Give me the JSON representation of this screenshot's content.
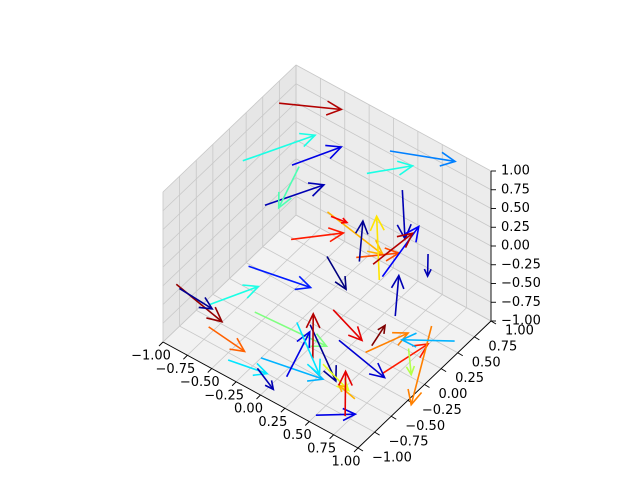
{
  "chart_data": {
    "type": "quiver3d",
    "title": "",
    "xlabel": "",
    "ylabel": "",
    "zlabel": "",
    "xlim": [
      -1.0,
      1.0
    ],
    "ylim": [
      -1.0,
      1.0
    ],
    "zlim": [
      -1.0,
      1.0
    ],
    "grid": true,
    "colormap": "jet",
    "x_ticks": [
      "−1.00",
      "−0.75",
      "−0.50",
      "−0.25",
      "0.00",
      "0.25",
      "0.50",
      "0.75",
      "1.00"
    ],
    "y_ticks": [
      "−1.00",
      "−0.75",
      "−0.50",
      "−0.25",
      "0.00",
      "0.25",
      "0.50",
      "0.75",
      "1.00"
    ],
    "z_ticks": [
      "−1.00",
      "−0.75",
      "−0.50",
      "−0.25",
      "0.00",
      "0.25",
      "0.50",
      "0.75",
      "1.00"
    ],
    "arrows": [
      {
        "x": -0.9,
        "y": 0.6,
        "z": 0.9,
        "u": 0.5,
        "v": 0.2,
        "w": 0.1,
        "c": 0.95
      },
      {
        "x": 0.1,
        "y": 0.8,
        "z": 0.8,
        "u": 0.6,
        "v": 0.1,
        "w": 0.2,
        "c": 0.25
      },
      {
        "x": 0.5,
        "y": 0.4,
        "z": 0.9,
        "u": 0.3,
        "v": -0.4,
        "w": -0.1,
        "c": 0.05
      },
      {
        "x": -0.7,
        "y": 0.5,
        "z": 0.3,
        "u": 0.3,
        "v": 0.3,
        "w": 0.2,
        "c": 0.1
      },
      {
        "x": -1.0,
        "y": 0.2,
        "z": 0.4,
        "u": 0.4,
        "v": 0.5,
        "w": 0.2,
        "c": 0.4
      },
      {
        "x": -0.5,
        "y": -0.2,
        "z": 0.5,
        "u": 0.4,
        "v": 0.3,
        "w": 0.3,
        "c": 0.05
      },
      {
        "x": -0.2,
        "y": 0.3,
        "z": 0.2,
        "u": 0.5,
        "v": 0.1,
        "w": -0.3,
        "c": 0.7
      },
      {
        "x": 0.3,
        "y": 0.0,
        "z": 0.2,
        "u": 0.3,
        "v": 0.2,
        "w": 0.1,
        "c": 0.8
      },
      {
        "x": -0.3,
        "y": -0.1,
        "z": 0.1,
        "u": 0.4,
        "v": 0.2,
        "w": 0.2,
        "c": 0.85
      },
      {
        "x": 0.0,
        "y": 0.0,
        "z": 0.0,
        "u": 0.4,
        "v": -0.3,
        "w": 0.1,
        "c": 0.0
      },
      {
        "x": -0.6,
        "y": -0.3,
        "z": -0.3,
        "u": 0.5,
        "v": 0.2,
        "w": -0.1,
        "c": 0.15
      },
      {
        "x": -0.4,
        "y": -0.5,
        "z": -0.6,
        "u": 0.6,
        "v": 0.2,
        "w": -0.2,
        "c": 0.5
      },
      {
        "x": 0.2,
        "y": -0.2,
        "z": -0.4,
        "u": 0.5,
        "v": -0.3,
        "w": 0.2,
        "c": 0.9
      },
      {
        "x": 0.4,
        "y": 0.2,
        "z": -0.2,
        "u": -0.3,
        "v": 0.4,
        "w": 0.3,
        "c": 0.65
      },
      {
        "x": 0.1,
        "y": -0.4,
        "z": -0.5,
        "u": 0.4,
        "v": -0.2,
        "w": -0.3,
        "c": 0.02
      },
      {
        "x": -0.8,
        "y": -0.6,
        "z": -0.7,
        "u": 0.3,
        "v": 0.3,
        "w": 0.2,
        "c": 0.4
      },
      {
        "x": -0.2,
        "y": -0.7,
        "z": -0.9,
        "u": 0.5,
        "v": 0.2,
        "w": -0.1,
        "c": 0.3
      },
      {
        "x": 0.3,
        "y": -0.5,
        "z": -0.8,
        "u": 0.4,
        "v": -0.2,
        "w": 0.1,
        "c": 0.6
      },
      {
        "x": 0.6,
        "y": -0.3,
        "z": -0.6,
        "u": 0.3,
        "v": 0.2,
        "w": 0.3,
        "c": 0.75
      },
      {
        "x": 0.5,
        "y": 0.1,
        "z": 0.0,
        "u": 0.1,
        "v": 0.4,
        "w": 0.4,
        "c": 0.12
      },
      {
        "x": -0.9,
        "y": 0.9,
        "z": -0.2,
        "u": 0.2,
        "v": -0.6,
        "w": 0.1,
        "c": 0.45
      },
      {
        "x": -1.0,
        "y": -0.8,
        "z": -0.4,
        "u": 0.4,
        "v": 0.1,
        "w": -0.3,
        "c": 0.98
      },
      {
        "x": 0.9,
        "y": 0.2,
        "z": 0.5,
        "u": 0.2,
        "v": -0.3,
        "w": 0.1,
        "c": 0.05
      },
      {
        "x": 0.7,
        "y": 0.0,
        "z": -0.3,
        "u": -0.1,
        "v": 0.2,
        "w": 0.3,
        "c": 0.05
      },
      {
        "x": 0.8,
        "y": -0.5,
        "z": -0.2,
        "u": 0.0,
        "v": 0.2,
        "w": 0.1,
        "c": 1.0
      },
      {
        "x": 0.4,
        "y": -0.8,
        "z": -0.4,
        "u": -0.2,
        "v": 0.3,
        "w": 0.2,
        "c": 0.95
      },
      {
        "x": 0.2,
        "y": -0.9,
        "z": -0.7,
        "u": 0.1,
        "v": 0.2,
        "w": 0.5,
        "c": 0.1
      },
      {
        "x": 0.7,
        "y": -0.2,
        "z": -0.9,
        "u": 0.2,
        "v": 0.4,
        "w": 0.2,
        "c": 0.85
      },
      {
        "x": 0.1,
        "y": -0.6,
        "z": -0.3,
        "u": 0.3,
        "v": -0.1,
        "w": -0.4,
        "c": 0.35
      },
      {
        "x": 0.6,
        "y": -0.7,
        "z": -0.1,
        "u": 0.4,
        "v": 0.1,
        "w": -0.3,
        "c": 0.08
      },
      {
        "x": 0.9,
        "y": -0.9,
        "z": -0.5,
        "u": -0.3,
        "v": 0.2,
        "w": -0.2,
        "c": 0.7
      },
      {
        "x": -0.9,
        "y": -0.9,
        "z": -0.3,
        "u": 0.2,
        "v": 0.2,
        "w": -0.3,
        "c": 0.02
      },
      {
        "x": -0.6,
        "y": -0.9,
        "z": -0.6,
        "u": 0.3,
        "v": 0.1,
        "w": -0.2,
        "c": 0.78
      },
      {
        "x": -0.4,
        "y": -0.9,
        "z": -0.9,
        "u": 0.4,
        "v": 0.0,
        "w": 0.1,
        "c": 0.35
      },
      {
        "x": -0.1,
        "y": -0.9,
        "z": -0.8,
        "u": 0.3,
        "v": -0.2,
        "w": 0.1,
        "c": 0.05
      },
      {
        "x": 0.5,
        "y": -0.9,
        "z": -1.0,
        "u": 0.2,
        "v": 0.3,
        "w": -0.1,
        "c": 0.1
      },
      {
        "x": 0.8,
        "y": -0.9,
        "z": -0.8,
        "u": -0.2,
        "v": 0.3,
        "w": 0.2,
        "c": 0.9
      },
      {
        "x": 0.8,
        "y": 0.4,
        "z": -0.7,
        "u": 0.2,
        "v": -0.6,
        "w": -0.4,
        "c": 0.75
      },
      {
        "x": 0.7,
        "y": 0.2,
        "z": -0.9,
        "u": 0.3,
        "v": -0.4,
        "w": 0.2,
        "c": 0.55
      },
      {
        "x": 0.9,
        "y": 0.6,
        "z": -1.0,
        "u": -0.2,
        "v": -0.5,
        "w": 0.3,
        "c": 0.3
      },
      {
        "x": 0.0,
        "y": 0.6,
        "z": 0.6,
        "u": 0.4,
        "v": 0.1,
        "w": 0.3,
        "c": 0.4
      },
      {
        "x": -0.3,
        "y": 0.5,
        "z": -0.1,
        "u": 0.3,
        "v": -0.2,
        "w": 0.3,
        "c": 0.88
      },
      {
        "x": 0.2,
        "y": 0.4,
        "z": -0.3,
        "u": 0.2,
        "v": 0.3,
        "w": 0.3,
        "c": 0.95
      },
      {
        "x": 0.4,
        "y": -0.1,
        "z": 0.3,
        "u": -0.1,
        "v": 0.2,
        "w": 0.3,
        "c": 0.02
      }
    ]
  }
}
